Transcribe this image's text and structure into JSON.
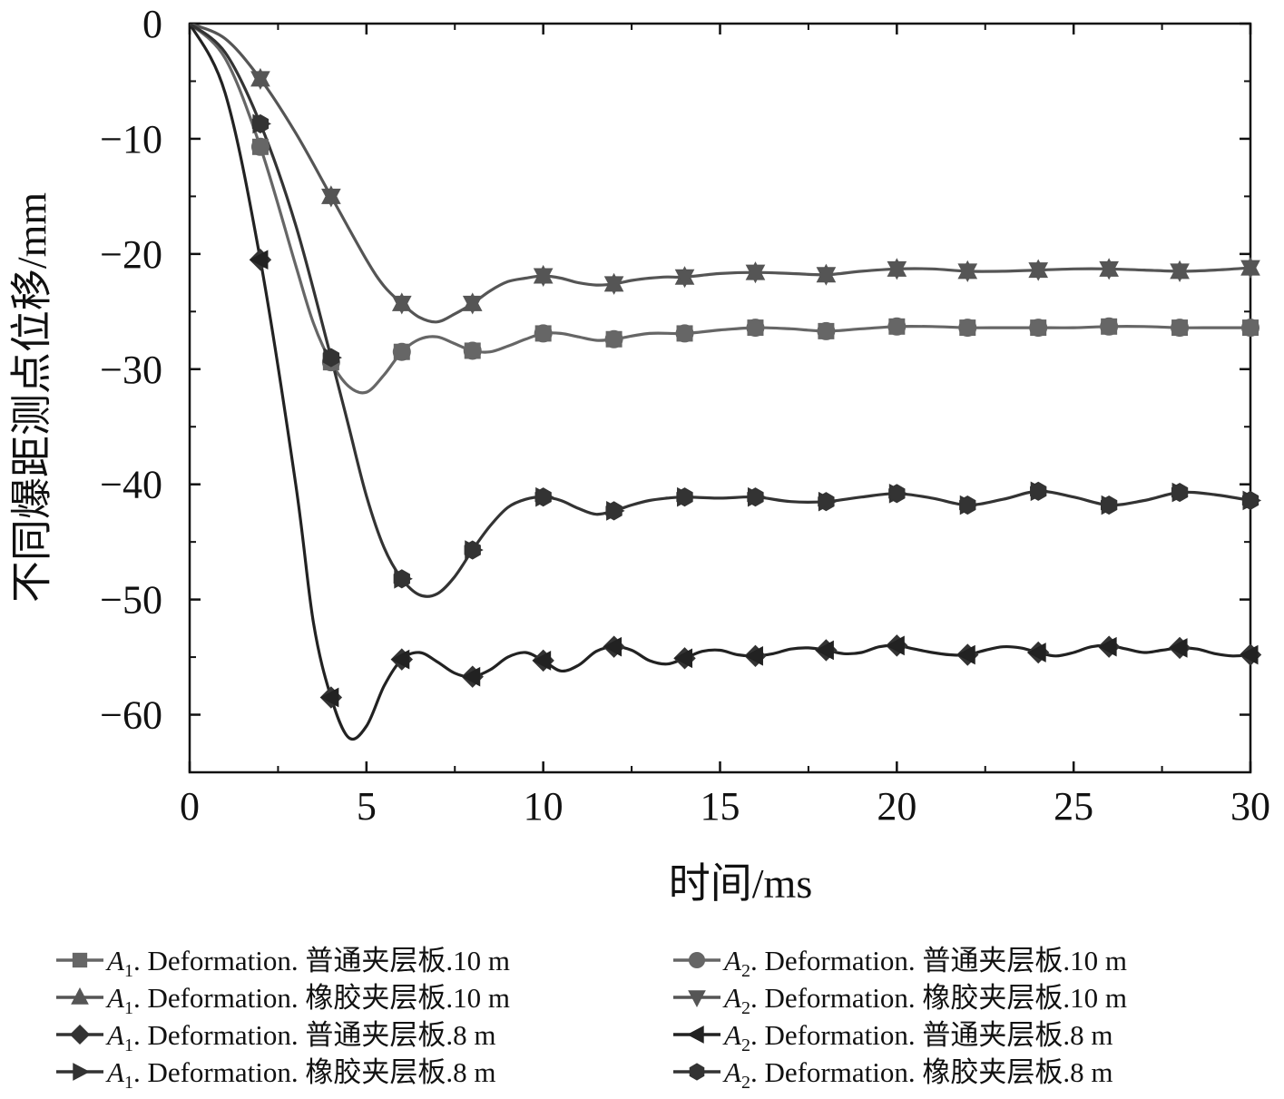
{
  "chart_data": {
    "type": "line",
    "title": "",
    "xlabel": "时间/ms",
    "ylabel": "不同爆距测点位移/mm",
    "xlim": [
      0,
      30
    ],
    "ylim": [
      -65,
      0
    ],
    "x_ticks": [
      0,
      5,
      10,
      15,
      20,
      25,
      30
    ],
    "x_tick_labels": [
      "0",
      "5",
      "10",
      "15",
      "20",
      "25",
      "30"
    ],
    "y_ticks": [
      0,
      -10,
      -20,
      -30,
      -40,
      -50,
      -60
    ],
    "y_tick_labels": [
      "0",
      "−10",
      "−20",
      "−30",
      "−40",
      "−50",
      "−60"
    ],
    "grid": false,
    "legend_position": "bottom",
    "series": [
      {
        "name": "A1.Deformation.普通夹层板.10 m",
        "pos": "A",
        "sub": "1",
        "rest": ". Deformation. 普通夹层板.10 m",
        "marker": "square",
        "curve": "c10n",
        "color": "#666666",
        "x": [
          0,
          2,
          4,
          6,
          8,
          10,
          12,
          14,
          16,
          18,
          20,
          22,
          24,
          26,
          28,
          30
        ],
        "values": [
          0,
          -10.7,
          -29.4,
          -28.5,
          -28.4,
          -26.9,
          -27.4,
          -26.9,
          -26.4,
          -26.7,
          -26.3,
          -26.4,
          -26.4,
          -26.3,
          -26.4,
          -26.4
        ]
      },
      {
        "name": "A1.Deformation.橡胶夹层板.10 m",
        "pos": "A",
        "sub": "1",
        "rest": ". Deformation. 橡胶夹层板.10 m",
        "marker": "triangle-up",
        "curve": "c10r",
        "color": "#555555",
        "x": [
          0,
          2,
          4,
          6,
          8,
          10,
          12,
          14,
          16,
          18,
          20,
          22,
          24,
          26,
          28,
          30
        ],
        "values": [
          0,
          -4.8,
          -15.0,
          -24.3,
          -24.3,
          -21.9,
          -22.6,
          -22.0,
          -21.6,
          -21.8,
          -21.3,
          -21.5,
          -21.4,
          -21.3,
          -21.5,
          -21.2
        ]
      },
      {
        "name": "A1.Deformation.普通夹层板.8 m",
        "pos": "A",
        "sub": "1",
        "rest": ". Deformation. 普通夹层板.8 m",
        "marker": "diamond",
        "curve": "c8n",
        "color": "#333333",
        "x": [
          0,
          2,
          4,
          6,
          8,
          10,
          12,
          14,
          16,
          18,
          20,
          22,
          24,
          26,
          28,
          30
        ],
        "values": [
          0,
          -20.5,
          -58.5,
          -55.2,
          -56.7,
          -55.3,
          -54.1,
          -55.1,
          -54.9,
          -54.4,
          -54.0,
          -54.8,
          -54.6,
          -54.1,
          -54.2,
          -54.8
        ]
      },
      {
        "name": "A1.Deformation.橡胶夹层板.8 m",
        "pos": "A",
        "sub": "1",
        "rest": ". Deformation. 橡胶夹层板.8 m",
        "marker": "triangle-right",
        "curve": "c8r",
        "color": "#333333",
        "x": [
          0,
          2,
          4,
          6,
          8,
          10,
          12,
          14,
          16,
          18,
          20,
          22,
          24,
          26,
          28,
          30
        ],
        "values": [
          0,
          -8.7,
          -29.0,
          -48.2,
          -45.7,
          -41.1,
          -42.3,
          -41.1,
          -41.1,
          -41.5,
          -40.8,
          -41.8,
          -40.6,
          -41.8,
          -40.7,
          -41.4
        ]
      },
      {
        "name": "A2.Deformation.普通夹层板.10 m",
        "pos": "A",
        "sub": "2",
        "rest": ". Deformation. 普通夹层板.10 m",
        "marker": "circle",
        "curve": "c10n",
        "color": "#666666",
        "x": [
          0,
          2,
          4,
          6,
          8,
          10,
          12,
          14,
          16,
          18,
          20,
          22,
          24,
          26,
          28,
          30
        ],
        "values": [
          0,
          -10.7,
          -29.4,
          -28.5,
          -28.4,
          -26.9,
          -27.4,
          -26.9,
          -26.4,
          -26.7,
          -26.3,
          -26.4,
          -26.4,
          -26.3,
          -26.4,
          -26.4
        ]
      },
      {
        "name": "A2.Deformation.橡胶夹层板.10 m",
        "pos": "A",
        "sub": "2",
        "rest": ". Deformation. 橡胶夹层板.10 m",
        "marker": "triangle-down",
        "curve": "c10r",
        "color": "#555555",
        "x": [
          0,
          2,
          4,
          6,
          8,
          10,
          12,
          14,
          16,
          18,
          20,
          22,
          24,
          26,
          28,
          30
        ],
        "values": [
          0,
          -4.8,
          -15.0,
          -24.3,
          -24.3,
          -21.9,
          -22.6,
          -22.0,
          -21.6,
          -21.8,
          -21.3,
          -21.5,
          -21.4,
          -21.3,
          -21.5,
          -21.2
        ]
      },
      {
        "name": "A2.Deformation.普通夹层板.8 m",
        "pos": "A",
        "sub": "2",
        "rest": ". Deformation. 普通夹层板.8 m",
        "marker": "triangle-left",
        "curve": "c8n",
        "color": "#222222",
        "x": [
          0,
          2,
          4,
          6,
          8,
          10,
          12,
          14,
          16,
          18,
          20,
          22,
          24,
          26,
          28,
          30
        ],
        "values": [
          0,
          -20.5,
          -58.5,
          -55.2,
          -56.7,
          -55.3,
          -54.1,
          -55.1,
          -54.9,
          -54.4,
          -54.0,
          -54.8,
          -54.6,
          -54.1,
          -54.2,
          -54.8
        ]
      },
      {
        "name": "A2.Deformation.橡胶夹层板.8 m",
        "pos": "A",
        "sub": "2",
        "rest": ". Deformation. 橡胶夹层板.8 m",
        "marker": "hexagon",
        "curve": "c8r",
        "color": "#333333",
        "x": [
          0,
          2,
          4,
          6,
          8,
          10,
          12,
          14,
          16,
          18,
          20,
          22,
          24,
          26,
          28,
          30
        ],
        "values": [
          0,
          -8.7,
          -29.0,
          -48.2,
          -45.7,
          -41.1,
          -42.3,
          -41.1,
          -41.1,
          -41.5,
          -40.8,
          -41.8,
          -40.6,
          -41.8,
          -40.7,
          -41.4
        ]
      }
    ],
    "curves": {
      "c10n": {
        "color": "#666666",
        "x": [
          0,
          1,
          2,
          3,
          3.5,
          4,
          4.5,
          5,
          5.5,
          6,
          6.5,
          7,
          7.5,
          8,
          8.5,
          9,
          9.5,
          10,
          10.5,
          11,
          11.5,
          12,
          13,
          14,
          15,
          16,
          17,
          18,
          19,
          20,
          21,
          22,
          23,
          24,
          25,
          26,
          27,
          28,
          29,
          30
        ],
        "y": [
          0,
          -3,
          -10.7,
          -21,
          -26,
          -29.4,
          -31.5,
          -32,
          -30.5,
          -28.5,
          -27.4,
          -27.2,
          -27.8,
          -28.4,
          -28.5,
          -28,
          -27.4,
          -26.9,
          -26.9,
          -27.2,
          -27.5,
          -27.4,
          -26.9,
          -26.9,
          -26.6,
          -26.4,
          -26.5,
          -26.7,
          -26.5,
          -26.3,
          -26.3,
          -26.4,
          -26.4,
          -26.4,
          -26.4,
          -26.3,
          -26.3,
          -26.4,
          -26.4,
          -26.4
        ]
      },
      "c10r": {
        "color": "#555555",
        "x": [
          0,
          1,
          2,
          3,
          4,
          5,
          5.5,
          6,
          6.5,
          7,
          7.5,
          8,
          8.5,
          9,
          9.5,
          10,
          10.5,
          11,
          11.5,
          12,
          12.5,
          13,
          13.5,
          14,
          15,
          16,
          17,
          18,
          19,
          20,
          21,
          22,
          23,
          24,
          25,
          26,
          27,
          28,
          29,
          30
        ],
        "y": [
          0,
          -1.3,
          -4.8,
          -9.5,
          -15,
          -20.5,
          -22.8,
          -24.3,
          -25.5,
          -25.9,
          -25.2,
          -24.3,
          -23.2,
          -22.4,
          -22.1,
          -21.9,
          -22.1,
          -22.5,
          -22.7,
          -22.6,
          -22.3,
          -22.1,
          -22.0,
          -22.0,
          -21.7,
          -21.6,
          -21.7,
          -21.8,
          -21.5,
          -21.3,
          -21.3,
          -21.5,
          -21.5,
          -21.4,
          -21.3,
          -21.3,
          -21.4,
          -21.5,
          -21.4,
          -21.2
        ]
      },
      "c8n": {
        "color": "#222222",
        "x": [
          0,
          1,
          2,
          3,
          3.5,
          4,
          4.5,
          5,
          5.5,
          6,
          6.5,
          7,
          7.5,
          8,
          8.5,
          9,
          9.5,
          10,
          10.5,
          11,
          11.5,
          12,
          12.5,
          13,
          13.5,
          14,
          14.5,
          15,
          15.5,
          16,
          16.5,
          17,
          17.5,
          18,
          18.5,
          19,
          19.5,
          20,
          20.5,
          21,
          21.5,
          22,
          22.5,
          23,
          23.5,
          24,
          24.5,
          25,
          25.5,
          26,
          26.5,
          27,
          27.5,
          28,
          28.5,
          29,
          29.5,
          30
        ],
        "y": [
          0,
          -6,
          -20.5,
          -40,
          -52,
          -58.5,
          -62,
          -61,
          -57.5,
          -55.2,
          -54.6,
          -55.4,
          -56.4,
          -56.7,
          -56.1,
          -55.0,
          -54.6,
          -55.3,
          -56.2,
          -55.7,
          -54.5,
          -54.1,
          -54.4,
          -55.3,
          -55.6,
          -55.1,
          -54.5,
          -54.4,
          -54.8,
          -54.9,
          -54.7,
          -54.3,
          -54.2,
          -54.4,
          -54.7,
          -54.6,
          -54.1,
          -54.0,
          -54.3,
          -54.6,
          -54.8,
          -54.8,
          -54.4,
          -54.1,
          -54.2,
          -54.6,
          -54.9,
          -54.6,
          -54.1,
          -54.0,
          -54.3,
          -54.6,
          -54.4,
          -54.2,
          -54.3,
          -54.7,
          -54.9,
          -54.8
        ]
      },
      "c8r": {
        "color": "#333333",
        "x": [
          0,
          1,
          2,
          3,
          4,
          4.5,
          5,
          5.5,
          6,
          6.5,
          7,
          7.5,
          8,
          8.5,
          9,
          9.5,
          10,
          10.5,
          11,
          11.5,
          12,
          12.5,
          13,
          13.5,
          14,
          15,
          16,
          17,
          18,
          19,
          20,
          21,
          22,
          23,
          24,
          25,
          26,
          27,
          28,
          29,
          30
        ],
        "y": [
          0,
          -2.5,
          -8.7,
          -17.5,
          -29,
          -35,
          -41,
          -45.5,
          -48.2,
          -49.6,
          -49.5,
          -48,
          -45.7,
          -43.6,
          -42,
          -41.3,
          -41.1,
          -41.4,
          -42.1,
          -42.6,
          -42.3,
          -41.8,
          -41.4,
          -41.2,
          -41.1,
          -41.2,
          -41.1,
          -41.5,
          -41.5,
          -41.1,
          -40.8,
          -41.2,
          -41.8,
          -41.3,
          -40.6,
          -41.1,
          -41.8,
          -41.4,
          -40.7,
          -40.9,
          -41.4
        ]
      }
    }
  }
}
